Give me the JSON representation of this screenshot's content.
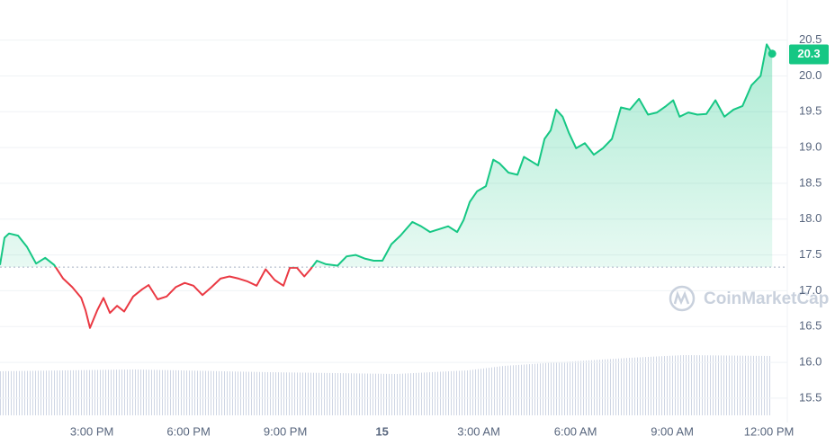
{
  "chart_data": {
    "type": "line",
    "x": [
      12.15,
      12.29,
      12.43,
      12.71,
      12.99,
      13.27,
      13.55,
      13.83,
      14.11,
      14.39,
      14.67,
      14.8,
      14.94,
      15.17,
      15.36,
      15.56,
      15.78,
      16.0,
      16.28,
      16.56,
      16.76,
      17.04,
      17.32,
      17.6,
      17.88,
      18.15,
      18.43,
      18.71,
      18.99,
      19.27,
      19.55,
      19.83,
      20.11,
      20.39,
      20.67,
      20.94,
      21.14,
      21.36,
      21.59,
      21.78,
      21.98,
      22.26,
      22.62,
      22.9,
      23.18,
      23.46,
      23.74,
      24.01,
      24.29,
      24.57,
      24.94,
      25.21,
      25.49,
      25.77,
      26.05,
      26.33,
      26.53,
      26.72,
      26.95,
      27.22,
      27.45,
      27.64,
      27.92,
      28.2,
      28.4,
      28.62,
      28.84,
      29.04,
      29.23,
      29.4,
      29.6,
      29.79,
      30.02,
      30.29,
      30.57,
      30.85,
      31.13,
      31.41,
      31.69,
      31.97,
      32.25,
      32.53,
      32.81,
      33.03,
      33.23,
      33.5,
      33.78,
      34.06,
      34.34,
      34.62,
      34.9,
      35.18,
      35.46,
      35.74,
      35.93,
      36.1
    ],
    "values": [
      17.36,
      17.74,
      17.8,
      17.77,
      17.61,
      17.38,
      17.46,
      17.36,
      17.17,
      17.05,
      16.9,
      16.73,
      16.48,
      16.73,
      16.9,
      16.69,
      16.79,
      16.71,
      16.92,
      17.02,
      17.08,
      16.88,
      16.92,
      17.05,
      17.11,
      17.07,
      16.94,
      17.05,
      17.17,
      17.2,
      17.17,
      17.13,
      17.07,
      17.3,
      17.15,
      17.07,
      17.32,
      17.32,
      17.2,
      17.3,
      17.42,
      17.37,
      17.35,
      17.48,
      17.5,
      17.45,
      17.42,
      17.42,
      17.65,
      17.77,
      17.96,
      17.9,
      17.82,
      17.86,
      17.9,
      17.82,
      17.99,
      18.24,
      18.39,
      18.46,
      18.83,
      18.78,
      18.65,
      18.62,
      18.87,
      18.81,
      18.75,
      19.12,
      19.24,
      19.53,
      19.43,
      19.21,
      18.99,
      19.06,
      18.9,
      18.99,
      19.12,
      19.56,
      19.53,
      19.68,
      19.46,
      19.49,
      19.58,
      19.66,
      19.43,
      19.49,
      19.46,
      19.47,
      19.66,
      19.43,
      19.53,
      19.58,
      19.87,
      20.0,
      20.44,
      20.31
    ],
    "color": "#16c784",
    "down_color": "#ea3943",
    "baseline": 17.33,
    "current_price": 20.3,
    "watermark": "CoinMarketCap",
    "xlim": [
      12.15,
      36.57
    ],
    "ylim": [
      15.16,
      21.06
    ],
    "xticks": [
      {
        "value": 15,
        "label": "3:00 PM"
      },
      {
        "value": 18,
        "label": "6:00 PM"
      },
      {
        "value": 21,
        "label": "9:00 PM"
      },
      {
        "value": 24,
        "label": "15"
      },
      {
        "value": 27,
        "label": "3:00 AM"
      },
      {
        "value": 30,
        "label": "6:00 AM"
      },
      {
        "value": 33,
        "label": "9:00 AM"
      },
      {
        "value": 36,
        "label": "12:00 PM"
      }
    ],
    "yticks": [
      15.5,
      {
        "value": 16,
        "label": "16.0"
      },
      16.5,
      {
        "value": 17,
        "label": "17.0"
      },
      17.5,
      {
        "value": 18,
        "label": "18.0"
      },
      18.5,
      {
        "value": 19,
        "label": "19.0"
      },
      19.5,
      {
        "value": 20,
        "label": "20.0"
      },
      20.5
    ],
    "grid": true
  }
}
